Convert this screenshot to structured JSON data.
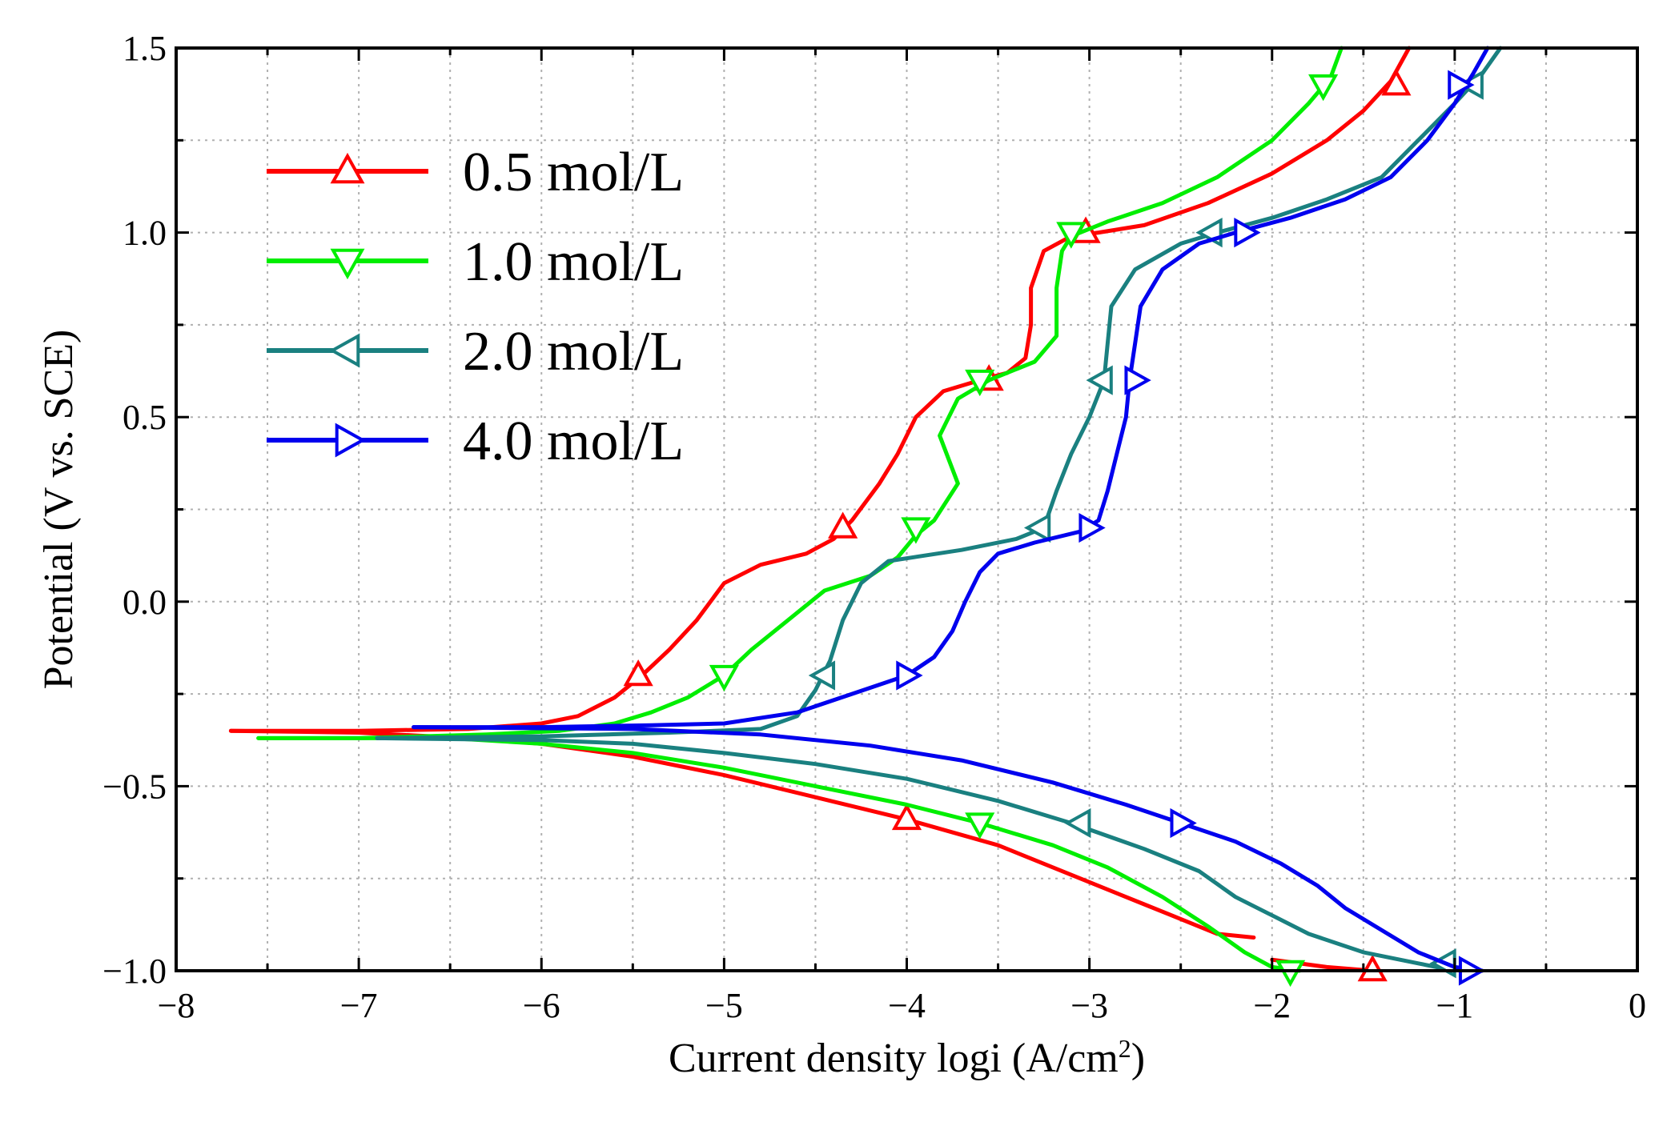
{
  "chart_data": {
    "type": "line",
    "title": "",
    "xlabel": "Current density logi (A/cm",
    "xlabel_sup": "2",
    "xlabel_end": ")",
    "ylabel": "Potential (V vs. SCE)",
    "xlim": [
      -8,
      0
    ],
    "ylim": [
      -1.0,
      1.5
    ],
    "x_ticks": [
      -8,
      -7,
      -6,
      -5,
      -4,
      -3,
      -2,
      -1,
      0
    ],
    "x_tick_labels": [
      "−8",
      "−7",
      "−6",
      "−5",
      "−4",
      "−3",
      "−2",
      "−1",
      "0"
    ],
    "y_ticks": [
      -1.0,
      -0.5,
      0.0,
      0.5,
      1.0,
      1.5
    ],
    "y_tick_labels": [
      "−1.0",
      "−0.5",
      "0.0",
      "0.5",
      "1.0",
      "1.5"
    ],
    "grid": true,
    "legend_position": "top-left",
    "series": [
      {
        "name": "0.5 mol/L",
        "color": "#ff0000",
        "marker": "triangle-up",
        "anodic": [
          [
            -7.7,
            -0.35
          ],
          [
            -7.0,
            -0.35
          ],
          [
            -6.4,
            -0.345
          ],
          [
            -6.0,
            -0.33
          ],
          [
            -5.8,
            -0.31
          ],
          [
            -5.6,
            -0.26
          ],
          [
            -5.45,
            -0.2
          ],
          [
            -5.3,
            -0.13
          ],
          [
            -5.15,
            -0.05
          ],
          [
            -5.0,
            0.05
          ],
          [
            -4.8,
            0.1
          ],
          [
            -4.55,
            0.13
          ],
          [
            -4.4,
            0.17
          ],
          [
            -4.3,
            0.22
          ],
          [
            -4.15,
            0.32
          ],
          [
            -4.05,
            0.4
          ],
          [
            -3.95,
            0.5
          ],
          [
            -3.8,
            0.57
          ],
          [
            -3.6,
            0.6
          ],
          [
            -3.45,
            0.62
          ],
          [
            -3.35,
            0.66
          ],
          [
            -3.32,
            0.75
          ],
          [
            -3.32,
            0.85
          ],
          [
            -3.25,
            0.95
          ],
          [
            -3.1,
            0.99
          ],
          [
            -2.95,
            1.0
          ],
          [
            -2.7,
            1.02
          ],
          [
            -2.35,
            1.08
          ],
          [
            -2.0,
            1.16
          ],
          [
            -1.7,
            1.25
          ],
          [
            -1.5,
            1.33
          ],
          [
            -1.35,
            1.41
          ],
          [
            -1.25,
            1.5
          ]
        ],
        "cathodic": [
          [
            -7.7,
            -0.35
          ],
          [
            -7.0,
            -0.355
          ],
          [
            -6.4,
            -0.37
          ],
          [
            -6.0,
            -0.385
          ],
          [
            -5.5,
            -0.42
          ],
          [
            -5.0,
            -0.47
          ],
          [
            -4.5,
            -0.53
          ],
          [
            -4.0,
            -0.59
          ],
          [
            -3.5,
            -0.66
          ],
          [
            -3.0,
            -0.76
          ],
          [
            -2.7,
            -0.82
          ],
          [
            -2.5,
            -0.86
          ],
          [
            -2.3,
            -0.9
          ],
          [
            -2.1,
            -0.91
          ]
        ],
        "cathodic_tail": [
          [
            -2.0,
            -0.97
          ],
          [
            -1.7,
            -0.99
          ],
          [
            -1.45,
            -1.0
          ]
        ],
        "markers": [
          [
            -5.47,
            -0.2
          ],
          [
            -4.35,
            0.2
          ],
          [
            -3.55,
            0.6
          ],
          [
            -3.02,
            1.0
          ],
          [
            -1.32,
            1.4
          ],
          [
            -4.0,
            -0.59
          ],
          [
            -1.45,
            -1.0
          ]
        ]
      },
      {
        "name": "1.0 mol/L",
        "color": "#00ee00",
        "marker": "triangle-down",
        "anodic": [
          [
            -7.55,
            -0.37
          ],
          [
            -7.0,
            -0.37
          ],
          [
            -6.3,
            -0.36
          ],
          [
            -5.9,
            -0.35
          ],
          [
            -5.6,
            -0.33
          ],
          [
            -5.4,
            -0.3
          ],
          [
            -5.2,
            -0.26
          ],
          [
            -5.0,
            -0.2
          ],
          [
            -4.85,
            -0.13
          ],
          [
            -4.65,
            -0.05
          ],
          [
            -4.45,
            0.03
          ],
          [
            -4.2,
            0.07
          ],
          [
            -4.05,
            0.12
          ],
          [
            -3.95,
            0.18
          ],
          [
            -3.85,
            0.22
          ],
          [
            -3.72,
            0.32
          ],
          [
            -3.82,
            0.45
          ],
          [
            -3.72,
            0.55
          ],
          [
            -3.55,
            0.6
          ],
          [
            -3.3,
            0.65
          ],
          [
            -3.18,
            0.72
          ],
          [
            -3.18,
            0.85
          ],
          [
            -3.15,
            0.95
          ],
          [
            -3.1,
            0.99
          ],
          [
            -2.9,
            1.03
          ],
          [
            -2.6,
            1.08
          ],
          [
            -2.3,
            1.15
          ],
          [
            -2.0,
            1.25
          ],
          [
            -1.8,
            1.35
          ],
          [
            -1.68,
            1.42
          ],
          [
            -1.62,
            1.5
          ]
        ],
        "cathodic": [
          [
            -7.55,
            -0.37
          ],
          [
            -6.5,
            -0.37
          ],
          [
            -6.0,
            -0.385
          ],
          [
            -5.5,
            -0.41
          ],
          [
            -5.0,
            -0.45
          ],
          [
            -4.5,
            -0.5
          ],
          [
            -4.0,
            -0.55
          ],
          [
            -3.6,
            -0.6
          ],
          [
            -3.2,
            -0.66
          ],
          [
            -2.9,
            -0.72
          ],
          [
            -2.6,
            -0.8
          ],
          [
            -2.35,
            -0.88
          ],
          [
            -2.15,
            -0.95
          ],
          [
            -2.0,
            -0.99
          ],
          [
            -1.85,
            -1.0
          ]
        ],
        "markers": [
          [
            -5.0,
            -0.2
          ],
          [
            -3.95,
            0.2
          ],
          [
            -3.6,
            0.6
          ],
          [
            -3.1,
            1.0
          ],
          [
            -1.72,
            1.4
          ],
          [
            -3.6,
            -0.6
          ],
          [
            -1.9,
            -1.0
          ]
        ]
      },
      {
        "name": "2.0 mol/L",
        "color": "#1a8080",
        "marker": "triangle-left",
        "anodic": [
          [
            -6.9,
            -0.37
          ],
          [
            -6.0,
            -0.365
          ],
          [
            -5.3,
            -0.355
          ],
          [
            -4.8,
            -0.345
          ],
          [
            -4.6,
            -0.31
          ],
          [
            -4.5,
            -0.24
          ],
          [
            -4.42,
            -0.16
          ],
          [
            -4.35,
            -0.05
          ],
          [
            -4.25,
            0.05
          ],
          [
            -4.1,
            0.11
          ],
          [
            -3.7,
            0.14
          ],
          [
            -3.4,
            0.17
          ],
          [
            -3.25,
            0.2
          ],
          [
            -3.18,
            0.3
          ],
          [
            -3.1,
            0.4
          ],
          [
            -3.0,
            0.5
          ],
          [
            -2.92,
            0.6
          ],
          [
            -2.9,
            0.7
          ],
          [
            -2.88,
            0.8
          ],
          [
            -2.75,
            0.9
          ],
          [
            -2.5,
            0.97
          ],
          [
            -2.3,
            1.0
          ],
          [
            -2.0,
            1.04
          ],
          [
            -1.7,
            1.09
          ],
          [
            -1.4,
            1.15
          ],
          [
            -1.2,
            1.25
          ],
          [
            -1.0,
            1.35
          ],
          [
            -0.85,
            1.43
          ],
          [
            -0.75,
            1.5
          ]
        ],
        "cathodic": [
          [
            -6.9,
            -0.37
          ],
          [
            -6.0,
            -0.375
          ],
          [
            -5.5,
            -0.385
          ],
          [
            -5.0,
            -0.41
          ],
          [
            -4.5,
            -0.44
          ],
          [
            -4.0,
            -0.48
          ],
          [
            -3.5,
            -0.54
          ],
          [
            -3.1,
            -0.6
          ],
          [
            -2.7,
            -0.67
          ],
          [
            -2.4,
            -0.73
          ],
          [
            -2.2,
            -0.8
          ],
          [
            -2.0,
            -0.85
          ],
          [
            -1.8,
            -0.9
          ],
          [
            -1.5,
            -0.95
          ],
          [
            -1.2,
            -0.98
          ],
          [
            -1.0,
            -1.0
          ]
        ],
        "markers": [
          [
            -4.45,
            -0.2
          ],
          [
            -3.27,
            0.2
          ],
          [
            -2.93,
            0.6
          ],
          [
            -2.33,
            1.0
          ],
          [
            -0.9,
            1.4
          ],
          [
            -3.05,
            -0.6
          ],
          [
            -1.05,
            -0.98
          ]
        ]
      },
      {
        "name": "4.0 mol/L",
        "color": "#0000ee",
        "marker": "triangle-right",
        "anodic": [
          [
            -6.7,
            -0.34
          ],
          [
            -6.0,
            -0.34
          ],
          [
            -5.4,
            -0.335
          ],
          [
            -5.0,
            -0.33
          ],
          [
            -4.6,
            -0.3
          ],
          [
            -4.3,
            -0.25
          ],
          [
            -4.0,
            -0.2
          ],
          [
            -3.85,
            -0.15
          ],
          [
            -3.75,
            -0.08
          ],
          [
            -3.68,
            0.0
          ],
          [
            -3.6,
            0.08
          ],
          [
            -3.5,
            0.13
          ],
          [
            -3.3,
            0.16
          ],
          [
            -3.05,
            0.19
          ],
          [
            -2.95,
            0.22
          ],
          [
            -2.9,
            0.3
          ],
          [
            -2.85,
            0.4
          ],
          [
            -2.8,
            0.5
          ],
          [
            -2.78,
            0.6
          ],
          [
            -2.75,
            0.7
          ],
          [
            -2.72,
            0.8
          ],
          [
            -2.6,
            0.9
          ],
          [
            -2.4,
            0.97
          ],
          [
            -2.2,
            1.0
          ],
          [
            -1.9,
            1.04
          ],
          [
            -1.6,
            1.09
          ],
          [
            -1.35,
            1.15
          ],
          [
            -1.15,
            1.25
          ],
          [
            -1.0,
            1.35
          ],
          [
            -0.9,
            1.43
          ],
          [
            -0.82,
            1.5
          ]
        ],
        "cathodic": [
          [
            -6.7,
            -0.34
          ],
          [
            -5.5,
            -0.345
          ],
          [
            -4.8,
            -0.36
          ],
          [
            -4.2,
            -0.39
          ],
          [
            -3.7,
            -0.43
          ],
          [
            -3.2,
            -0.49
          ],
          [
            -2.8,
            -0.55
          ],
          [
            -2.5,
            -0.6
          ],
          [
            -2.2,
            -0.65
          ],
          [
            -1.95,
            -0.71
          ],
          [
            -1.75,
            -0.77
          ],
          [
            -1.6,
            -0.83
          ],
          [
            -1.4,
            -0.89
          ],
          [
            -1.2,
            -0.95
          ],
          [
            -1.0,
            -0.99
          ],
          [
            -0.85,
            -1.0
          ]
        ],
        "markers": [
          [
            -4.0,
            -0.2
          ],
          [
            -3.0,
            0.2
          ],
          [
            -2.75,
            0.6
          ],
          [
            -2.15,
            1.0
          ],
          [
            -0.98,
            1.4
          ],
          [
            -2.5,
            -0.6
          ],
          [
            -0.92,
            -1.0
          ]
        ]
      }
    ]
  }
}
